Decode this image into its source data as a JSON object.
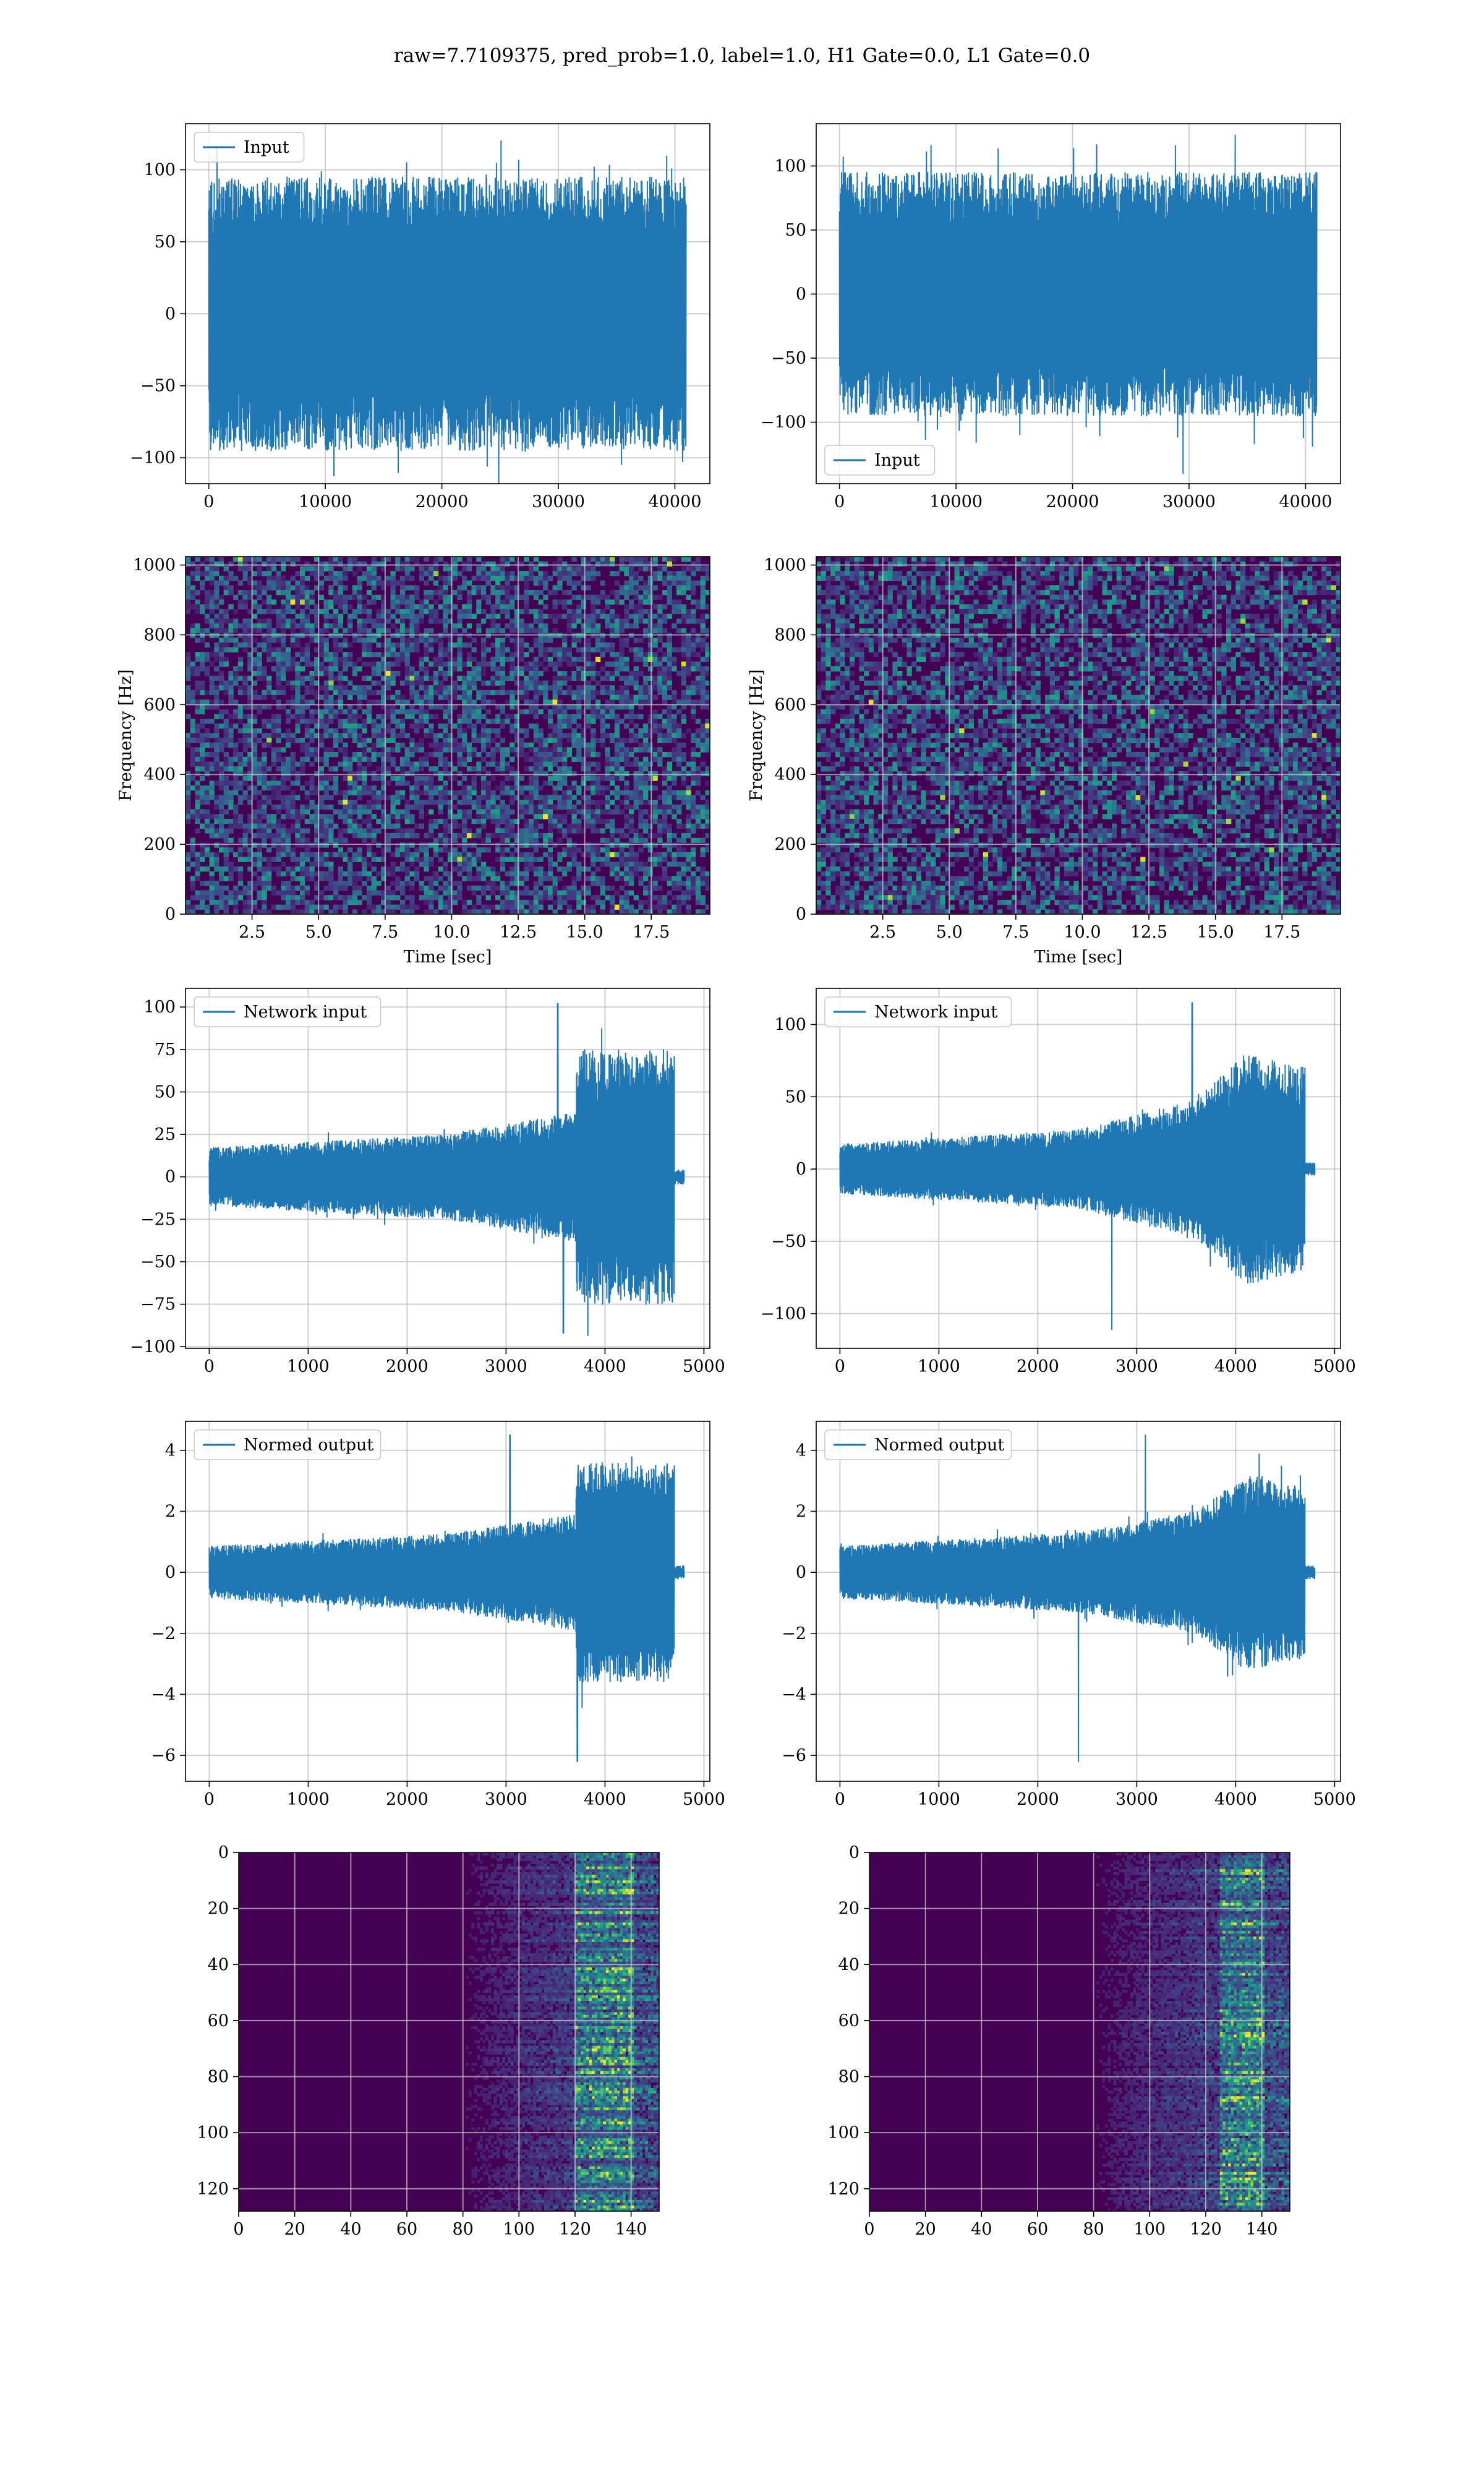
{
  "figure": {
    "suptitle": "raw=7.7109375, pred_prob=1.0, label=1.0, H1 Gate=0.0, L1 Gate=0.0",
    "colors": {
      "line": "#1f77b4",
      "grid": "#b0b0b0",
      "viridis_low": "#440154",
      "viridis_high": "#fde725"
    }
  },
  "chart_data": [
    {
      "id": "h1-input",
      "type": "line",
      "legend": "Input",
      "legend_loc": "upper-left",
      "xlim": [
        -2000,
        43000
      ],
      "ylim": [
        -118,
        132
      ],
      "xticks": [
        0,
        10000,
        20000,
        30000,
        40000
      ],
      "xticklabels": [
        "0",
        "10000",
        "20000",
        "30000",
        "40000"
      ],
      "yticks": [
        -100,
        -50,
        0,
        50,
        100
      ],
      "yticklabels": [
        "−100",
        "−50",
        "0",
        "50",
        "100"
      ],
      "series": {
        "n": 40960,
        "x_range": [
          0,
          40960
        ],
        "envelope": [
          [
            0,
            95
          ],
          [
            40960,
            95
          ]
        ],
        "peak": 120,
        "trough": -120
      }
    },
    {
      "id": "l1-input",
      "type": "line",
      "legend": "Input",
      "legend_loc": "lower-left",
      "xlim": [
        -2000,
        43000
      ],
      "ylim": [
        -148,
        133
      ],
      "xticks": [
        0,
        10000,
        20000,
        30000,
        40000
      ],
      "xticklabels": [
        "0",
        "10000",
        "20000",
        "30000",
        "40000"
      ],
      "yticks": [
        -100,
        -50,
        0,
        50,
        100
      ],
      "yticklabels": [
        "−100",
        "−50",
        "0",
        "50",
        "100"
      ],
      "series": {
        "n": 40960,
        "x_range": [
          0,
          40960
        ],
        "envelope": [
          [
            0,
            95
          ],
          [
            40960,
            95
          ]
        ],
        "peak": 124,
        "trough": -140
      }
    },
    {
      "id": "h1-spectrogram",
      "type": "heatmap",
      "colormap": "viridis",
      "xlabel": "Time [sec]",
      "ylabel": "Frequency [Hz]",
      "xlim": [
        0,
        19.7
      ],
      "ylim": [
        0,
        1024
      ],
      "xticks": [
        2.5,
        5.0,
        7.5,
        10.0,
        12.5,
        15.0,
        17.5
      ],
      "xticklabels": [
        "2.5",
        "5.0",
        "7.5",
        "10.0",
        "12.5",
        "15.0",
        "17.5"
      ],
      "yticks": [
        0,
        200,
        400,
        600,
        800,
        1000
      ],
      "yticklabels": [
        "0",
        "200",
        "400",
        "600",
        "800",
        "1000"
      ],
      "grid": true
    },
    {
      "id": "l1-spectrogram",
      "type": "heatmap",
      "colormap": "viridis",
      "xlabel": "Time [sec]",
      "ylabel": "Frequency [Hz]",
      "xlim": [
        0,
        19.7
      ],
      "ylim": [
        0,
        1024
      ],
      "xticks": [
        2.5,
        5.0,
        7.5,
        10.0,
        12.5,
        15.0,
        17.5
      ],
      "xticklabels": [
        "2.5",
        "5.0",
        "7.5",
        "10.0",
        "12.5",
        "15.0",
        "17.5"
      ],
      "yticks": [
        0,
        200,
        400,
        600,
        800,
        1000
      ],
      "yticklabels": [
        "0",
        "200",
        "400",
        "600",
        "800",
        "1000"
      ],
      "grid": true
    },
    {
      "id": "h1-network-input",
      "type": "line",
      "legend": "Network input",
      "legend_loc": "upper-left",
      "xlim": [
        -240,
        5060
      ],
      "ylim": [
        -101,
        111
      ],
      "xticks": [
        0,
        1000,
        2000,
        3000,
        4000,
        5000
      ],
      "xticklabels": [
        "0",
        "1000",
        "2000",
        "3000",
        "4000",
        "5000"
      ],
      "yticks": [
        -100,
        -75,
        -50,
        -25,
        0,
        25,
        50,
        75,
        100
      ],
      "yticklabels": [
        "−100",
        "−75",
        "−50",
        "−25",
        "0",
        "25",
        "50",
        "75",
        "100"
      ],
      "series": {
        "n": 4800,
        "x_range": [
          0,
          4800
        ],
        "cutoff": 4700,
        "envelope": [
          [
            0,
            17
          ],
          [
            2400,
            25
          ],
          [
            3700,
            38
          ],
          [
            3720,
            75
          ],
          [
            4700,
            75
          ]
        ],
        "peak": 102,
        "trough": -92
      }
    },
    {
      "id": "l1-network-input",
      "type": "line",
      "legend": "Network input",
      "legend_loc": "upper-left",
      "xlim": [
        -240,
        5060
      ],
      "ylim": [
        -124,
        125
      ],
      "xticks": [
        0,
        1000,
        2000,
        3000,
        4000,
        5000
      ],
      "xticklabels": [
        "0",
        "1000",
        "2000",
        "3000",
        "4000",
        "5000"
      ],
      "yticks": [
        -100,
        -50,
        0,
        50,
        100
      ],
      "yticklabels": [
        "−100",
        "−50",
        "0",
        "50",
        "100"
      ],
      "series": {
        "n": 4800,
        "x_range": [
          0,
          4800
        ],
        "cutoff": 4700,
        "envelope": [
          [
            0,
            17
          ],
          [
            2400,
            27
          ],
          [
            3600,
            48
          ],
          [
            4100,
            80
          ],
          [
            4700,
            70
          ]
        ],
        "peak": 115,
        "trough": -111
      }
    },
    {
      "id": "h1-normed-output",
      "type": "line",
      "legend": "Normed output",
      "legend_loc": "upper-left",
      "xlim": [
        -240,
        5060
      ],
      "ylim": [
        -6.85,
        4.95
      ],
      "xticks": [
        0,
        1000,
        2000,
        3000,
        4000,
        5000
      ],
      "xticklabels": [
        "0",
        "1000",
        "2000",
        "3000",
        "4000",
        "5000"
      ],
      "yticks": [
        -6,
        -4,
        -2,
        0,
        2,
        4
      ],
      "yticklabels": [
        "−6",
        "−4",
        "−2",
        "0",
        "2",
        "4"
      ],
      "series": {
        "n": 4800,
        "x_range": [
          0,
          4800
        ],
        "cutoff": 4700,
        "envelope": [
          [
            0,
            0.85
          ],
          [
            2400,
            1.25
          ],
          [
            3700,
            1.9
          ],
          [
            3720,
            3.6
          ],
          [
            4700,
            3.6
          ]
        ],
        "peak": 4.5,
        "trough": -6.2
      }
    },
    {
      "id": "l1-normed-output",
      "type": "line",
      "legend": "Normed output",
      "legend_loc": "upper-left",
      "xlim": [
        -240,
        5060
      ],
      "ylim": [
        -6.85,
        4.95
      ],
      "xticks": [
        0,
        1000,
        2000,
        3000,
        4000,
        5000
      ],
      "xticklabels": [
        "0",
        "1000",
        "2000",
        "3000",
        "4000",
        "5000"
      ],
      "yticks": [
        -6,
        -4,
        -2,
        0,
        2,
        4
      ],
      "yticklabels": [
        "−6",
        "−4",
        "−2",
        "0",
        "2",
        "4"
      ],
      "series": {
        "n": 4800,
        "x_range": [
          0,
          4800
        ],
        "cutoff": 4700,
        "envelope": [
          [
            0,
            0.85
          ],
          [
            2400,
            1.3
          ],
          [
            3600,
            2.0
          ],
          [
            4100,
            3.2
          ],
          [
            4700,
            2.8
          ]
        ],
        "peak": 4.5,
        "trough": -6.2
      }
    },
    {
      "id": "h1-qtransform",
      "type": "heatmap",
      "colormap": "viridis",
      "origin": "upper",
      "xlim": [
        0,
        150
      ],
      "ylim": [
        128,
        0
      ],
      "xticks": [
        0,
        20,
        40,
        60,
        80,
        100,
        120,
        140
      ],
      "xticklabels": [
        "0",
        "20",
        "40",
        "60",
        "80",
        "100",
        "120",
        "140"
      ],
      "yticks": [
        0,
        20,
        40,
        60,
        80,
        100,
        120
      ],
      "yticklabels": [
        "0",
        "20",
        "40",
        "60",
        "80",
        "100",
        "120"
      ],
      "grid": true,
      "energy_onset_col": 80,
      "hot_cols": [
        120,
        140
      ]
    },
    {
      "id": "l1-qtransform",
      "type": "heatmap",
      "colormap": "viridis",
      "origin": "upper",
      "xlim": [
        0,
        150
      ],
      "ylim": [
        128,
        0
      ],
      "xticks": [
        0,
        20,
        40,
        60,
        80,
        100,
        120,
        140
      ],
      "xticklabels": [
        "0",
        "20",
        "40",
        "60",
        "80",
        "100",
        "120",
        "140"
      ],
      "yticks": [
        0,
        20,
        40,
        60,
        80,
        100,
        120
      ],
      "yticklabels": [
        "0",
        "20",
        "40",
        "60",
        "80",
        "100",
        "120"
      ],
      "grid": true,
      "energy_onset_col": 80,
      "hot_cols": [
        125,
        140
      ]
    }
  ]
}
